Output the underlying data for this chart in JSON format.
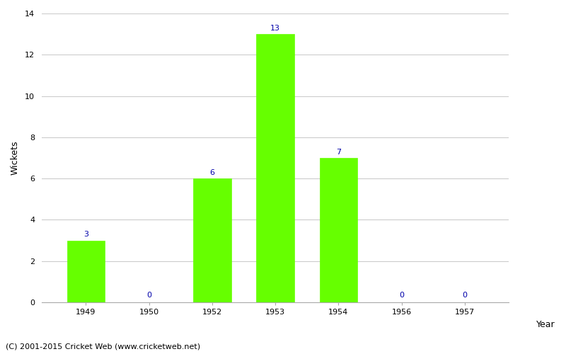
{
  "years": [
    1949,
    1950,
    1952,
    1953,
    1954,
    1956,
    1957
  ],
  "wickets": [
    3,
    0,
    6,
    13,
    7,
    0,
    0
  ],
  "bar_color": "#66ff00",
  "bar_edge_color": "#66ff00",
  "ylabel": "Wickets",
  "ylim": [
    0,
    14
  ],
  "yticks": [
    0,
    2,
    4,
    6,
    8,
    10,
    12,
    14
  ],
  "label_color": "#0000aa",
  "label_fontsize": 8,
  "axis_label_fontsize": 9,
  "tick_fontsize": 8,
  "background_color": "#ffffff",
  "grid_color": "#cccccc",
  "footer_text": "(C) 2001-2015 Cricket Web (www.cricketweb.net)",
  "footer_fontsize": 8,
  "bar_width": 0.6
}
